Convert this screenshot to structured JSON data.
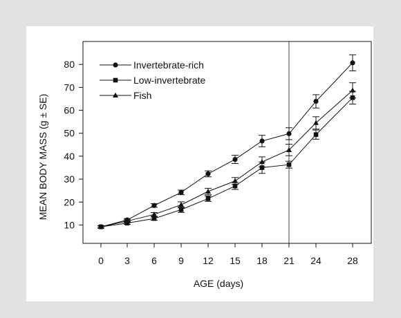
{
  "chart_data": {
    "type": "line",
    "xlabel": "AGE (days)",
    "ylabel": "MEAN BODY MASS (g ± SE)",
    "x": [
      0,
      3,
      6,
      9,
      12,
      15,
      18,
      21,
      24,
      28
    ],
    "x_tick_labels": [
      "0",
      "3",
      "6",
      "9",
      "12",
      "15",
      "18",
      "21",
      "24",
      "28"
    ],
    "y_ticks": [
      10,
      20,
      30,
      40,
      50,
      60,
      70,
      80
    ],
    "ylim": [
      2,
      90
    ],
    "vline_x": 21,
    "legend_position": "top-left",
    "grid": false,
    "series": [
      {
        "name": "Invertebrate-rich",
        "marker": "circle",
        "values": [
          9.2,
          12.2,
          18.5,
          24.2,
          32.3,
          38.6,
          46.6,
          49.8,
          63.9,
          80.7
        ],
        "errors": [
          0.5,
          0.6,
          0.8,
          1.0,
          1.3,
          1.8,
          2.5,
          2.6,
          2.9,
          3.5
        ]
      },
      {
        "name": "Low-invertebrate",
        "marker": "square",
        "values": [
          9.2,
          10.8,
          12.8,
          16.7,
          21.5,
          27.0,
          35.0,
          36.3,
          49.4,
          65.5
        ],
        "errors": [
          0.4,
          0.5,
          0.7,
          1.2,
          1.2,
          1.5,
          2.5,
          1.5,
          2.0,
          2.8
        ]
      },
      {
        "name": "Fish",
        "marker": "triangle",
        "values": [
          9.2,
          11.7,
          14.6,
          18.8,
          24.6,
          29.2,
          37.5,
          42.7,
          54.5,
          68.7
        ],
        "errors": [
          0.5,
          0.6,
          0.8,
          1.3,
          1.4,
          1.5,
          2.2,
          2.5,
          2.7,
          3.3
        ]
      }
    ]
  },
  "colors": {
    "line": "#111111",
    "background": "#e2e2e2",
    "card": "#ffffff"
  }
}
